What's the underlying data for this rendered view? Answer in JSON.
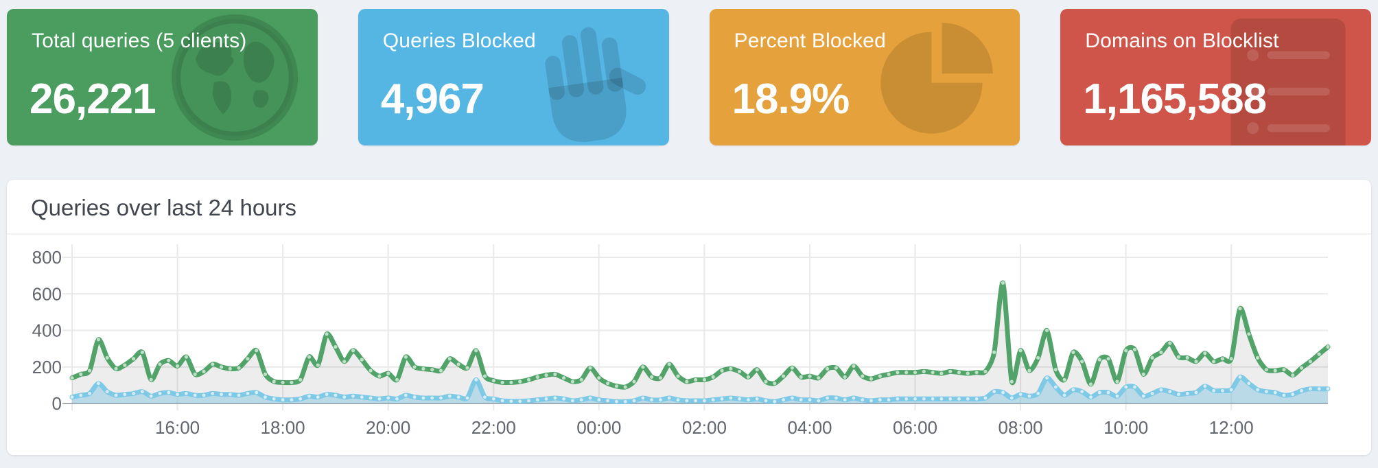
{
  "cards": [
    {
      "label": "Total queries (5 clients)",
      "value": "26,221",
      "color": "#4a9d5f",
      "icon": "globe-icon"
    },
    {
      "label": "Queries Blocked",
      "value": "4,967",
      "color": "#55b6e4",
      "icon": "hand-icon"
    },
    {
      "label": "Percent Blocked",
      "value": "18.9%",
      "color": "#e5a23c",
      "icon": "pie-chart-icon"
    },
    {
      "label": "Domains on Blocklist",
      "value": "1,165,588",
      "color": "#cf554a",
      "icon": "list-icon"
    }
  ],
  "chart_panel": {
    "title": "Queries over last 24 hours"
  },
  "chart_data": {
    "type": "area",
    "title": "Queries over last 24 hours",
    "x_start": "14:00",
    "interval_minutes": 10,
    "x_tick_labels": [
      "16:00",
      "18:00",
      "20:00",
      "22:00",
      "00:00",
      "02:00",
      "04:00",
      "06:00",
      "08:00",
      "10:00",
      "12:00"
    ],
    "y_ticks": [
      0,
      200,
      400,
      600,
      800
    ],
    "ylim": [
      0,
      800
    ],
    "grid": true,
    "legend_position": "none",
    "series": [
      {
        "name": "Total queries",
        "color": "#52a369",
        "fill": "rgba(0,0,0,0.07)",
        "point_color": "#bfe0c9",
        "values": [
          140,
          160,
          180,
          350,
          250,
          190,
          210,
          245,
          280,
          130,
          215,
          235,
          205,
          255,
          160,
          175,
          215,
          200,
          190,
          195,
          245,
          290,
          160,
          120,
          115,
          115,
          130,
          255,
          210,
          380,
          310,
          230,
          290,
          240,
          180,
          150,
          165,
          130,
          255,
          200,
          190,
          185,
          180,
          245,
          215,
          195,
          290,
          150,
          125,
          115,
          115,
          120,
          130,
          145,
          155,
          160,
          140,
          120,
          130,
          195,
          140,
          110,
          95,
          90,
          120,
          200,
          145,
          140,
          215,
          150,
          120,
          130,
          130,
          145,
          180,
          190,
          175,
          145,
          185,
          120,
          110,
          150,
          195,
          145,
          150,
          140,
          190,
          195,
          145,
          205,
          150,
          135,
          150,
          160,
          170,
          170,
          170,
          175,
          170,
          165,
          175,
          170,
          165,
          170,
          175,
          280,
          660,
          120,
          290,
          180,
          250,
          400,
          185,
          130,
          280,
          230,
          105,
          240,
          245,
          120,
          290,
          295,
          160,
          250,
          280,
          330,
          255,
          250,
          230,
          275,
          230,
          245,
          245,
          520,
          380,
          250,
          185,
          180,
          185,
          155,
          195,
          230,
          270,
          310
        ]
      },
      {
        "name": "Queries Blocked",
        "color": "#7ec9e5",
        "fill": "rgba(137,199,227,0.50)",
        "point_color": "#d7edf8",
        "values": [
          35,
          45,
          55,
          110,
          65,
          45,
          50,
          55,
          65,
          40,
          55,
          60,
          50,
          55,
          45,
          45,
          55,
          50,
          50,
          45,
          55,
          60,
          35,
          25,
          20,
          20,
          25,
          40,
          35,
          50,
          45,
          35,
          40,
          35,
          30,
          25,
          30,
          25,
          45,
          35,
          30,
          30,
          30,
          40,
          35,
          30,
          130,
          35,
          25,
          15,
          12,
          12,
          15,
          20,
          25,
          30,
          25,
          15,
          20,
          30,
          20,
          15,
          10,
          10,
          15,
          30,
          20,
          20,
          30,
          20,
          15,
          15,
          15,
          20,
          25,
          30,
          25,
          20,
          25,
          15,
          10,
          20,
          30,
          20,
          20,
          15,
          30,
          30,
          20,
          30,
          20,
          15,
          20,
          20,
          25,
          25,
          25,
          25,
          25,
          25,
          25,
          25,
          25,
          25,
          30,
          65,
          60,
          30,
          50,
          40,
          55,
          140,
          90,
          45,
          75,
          65,
          35,
          60,
          60,
          40,
          90,
          90,
          40,
          55,
          75,
          65,
          50,
          55,
          60,
          95,
          70,
          70,
          75,
          145,
          110,
          75,
          65,
          60,
          45,
          50,
          70,
          80,
          80,
          80
        ]
      }
    ]
  }
}
